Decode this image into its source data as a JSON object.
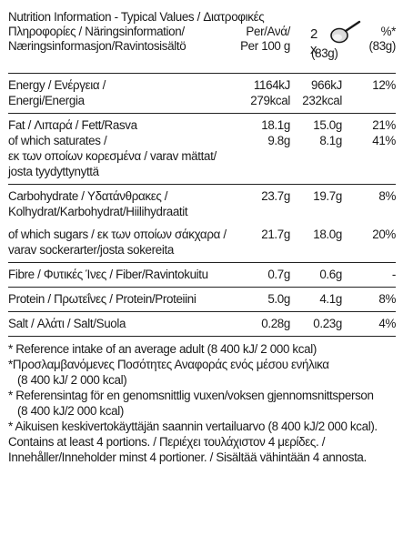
{
  "header": {
    "title_lines": [
      "Nutrition Information - Typical Values / Διατροφικές",
      "Πληροφορίες / Näringsinformation/",
      "Næringsinformasjon/Ravintosisältö"
    ],
    "per_100g_lines": [
      "Per/Ανά/",
      "Per 100 g"
    ],
    "serving_count": "2 x",
    "serving_weight": "(83g)",
    "ri_lines": [
      "%*",
      "(83g)"
    ]
  },
  "rows": [
    {
      "id": "energy",
      "lines": [
        "Energy / Ενέργεια /",
        "Energi/Energia"
      ],
      "per100": [
        "1164kJ",
        "279kcal"
      ],
      "serving": [
        "966kJ",
        "232kcal"
      ],
      "ri": [
        "12%",
        ""
      ]
    },
    {
      "id": "fat",
      "lines": [
        "Fat / Λιπαρά / Fett/Rasva"
      ],
      "per100": [
        "18.1g"
      ],
      "serving": [
        "15.0g"
      ],
      "ri": [
        "21%"
      ]
    },
    {
      "id": "saturates",
      "lines": [
        "of which saturates /",
        "εκ των οποίων κορεσμένα / varav mättat/",
        "josta tyydyttynyttä"
      ],
      "per100": [
        "9.8g",
        "",
        ""
      ],
      "serving": [
        "8.1g",
        "",
        ""
      ],
      "ri": [
        "41%",
        "",
        ""
      ]
    },
    {
      "id": "carbohydrate",
      "lines": [
        "Carbohydrate / Υδατάνθρακες /",
        "Kolhydrat/Karbohydrat/Hiilihydraatit"
      ],
      "per100": [
        "23.7g",
        ""
      ],
      "serving": [
        "19.7g",
        ""
      ],
      "ri": [
        "8%",
        ""
      ]
    },
    {
      "id": "sugars",
      "lines": [
        "of which sugars / εκ των οποίων σάκχαρα /",
        "varav sockerarter/josta sokereita"
      ],
      "per100": [
        "21.7g",
        ""
      ],
      "serving": [
        "18.0g",
        ""
      ],
      "ri": [
        "20%",
        ""
      ]
    },
    {
      "id": "fibre",
      "lines": [
        "Fibre / Φυτικές Ίνες / Fiber/Ravintokuitu"
      ],
      "per100": [
        "0.7g"
      ],
      "serving": [
        "0.6g"
      ],
      "ri": [
        "-"
      ]
    },
    {
      "id": "protein",
      "lines": [
        "Protein / Πρωτεΐνες / Protein/Proteiini"
      ],
      "per100": [
        "5.0g"
      ],
      "serving": [
        "4.1g"
      ],
      "ri": [
        "8%"
      ]
    },
    {
      "id": "salt",
      "lines": [
        "Salt / Αλάτι / Salt/Suola"
      ],
      "per100": [
        "0.28g"
      ],
      "serving": [
        "0.23g"
      ],
      "ri": [
        "4%"
      ]
    }
  ],
  "footnotes": [
    {
      "text": "* Reference intake of an average adult (8 400 kJ/ 2 000 kcal)",
      "indent": false
    },
    {
      "text": "*Προσλαμβανόμενες Ποσότητες Αναφοράς ενός μέσου ενήλικα",
      "indent": false
    },
    {
      "text": "(8 400 kJ/ 2 000 kcal)",
      "indent": true
    },
    {
      "text": "* Referensintag för en genomsnittlig vuxen/voksen gjennomsnittsperson",
      "indent": false
    },
    {
      "text": "(8 400 kJ/2 000 kcal)",
      "indent": true
    },
    {
      "text": "* Aikuisen keskivertokäyttäjän saannin vertailuarvo (8 400 kJ/2 000 kcal).",
      "indent": false
    },
    {
      "text": "Contains at least 4 portions. / Περιέχει τουλάχιστον 4 μερίδες. /",
      "indent": false
    },
    {
      "text": "Innehåller/Inneholder minst 4 portioner. / Sisältää vähintään 4 annosta.",
      "indent": false
    }
  ]
}
